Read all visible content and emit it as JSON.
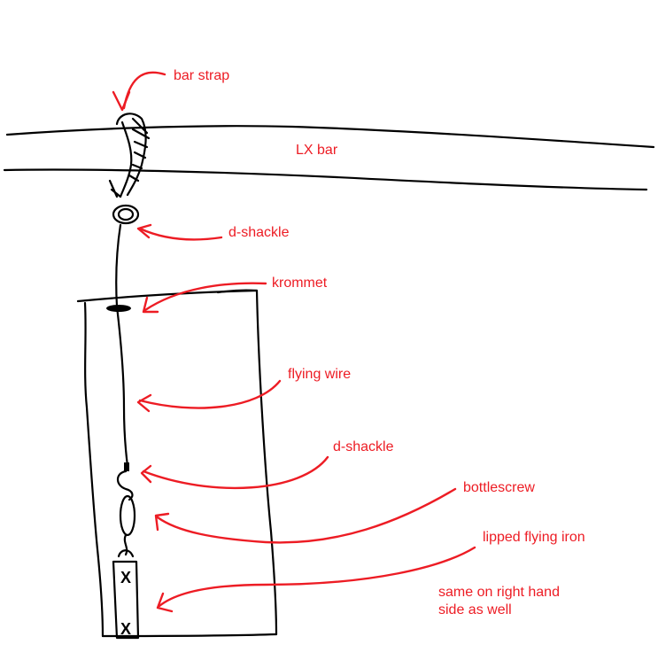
{
  "labels": {
    "bar_strap": "bar strap",
    "lx_bar": "LX bar",
    "d_shackle_top": "d-shackle",
    "krommet": "krommet",
    "flying_wire": "flying wire",
    "d_shackle_bottom": "d-shackle",
    "bottlescrew": "bottlescrew",
    "lipped_flying_iron": "lipped flying iron",
    "note_line1": "same on right hand",
    "note_line2": "side as well"
  },
  "marks": {
    "cross": "X"
  },
  "colors": {
    "ink": "#000000",
    "annotation": "#ed1c24",
    "background": "#ffffff"
  }
}
